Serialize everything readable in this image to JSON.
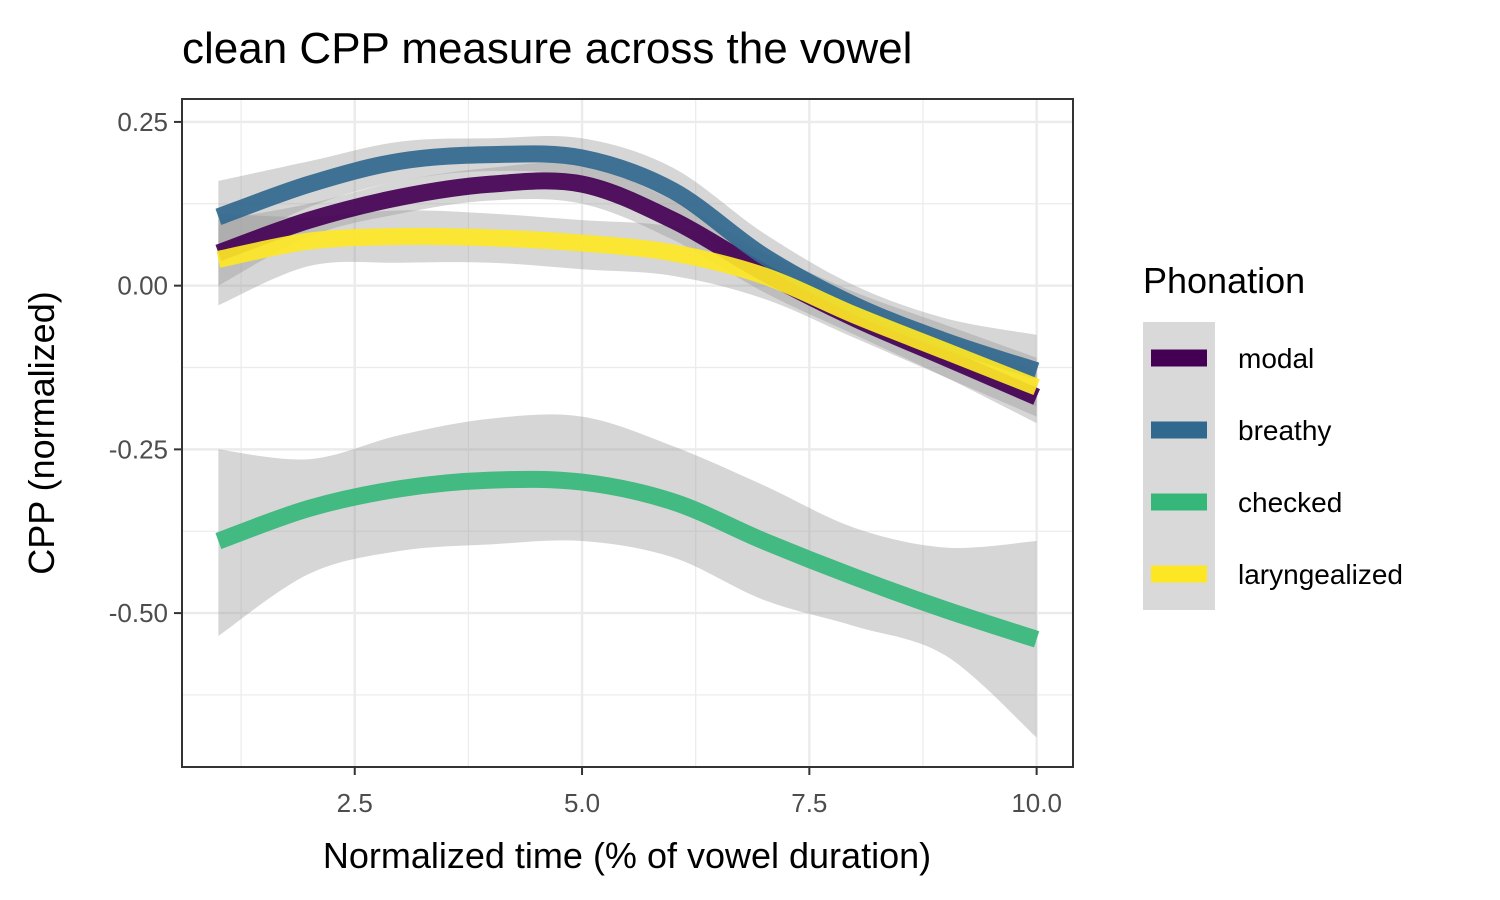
{
  "chart_data": {
    "type": "line",
    "title": "clean CPP measure across the vowel",
    "xlabel": "Normalized time (% of vowel duration)",
    "ylabel": "CPP (normalized)",
    "xlim": [
      0.6,
      10.4
    ],
    "ylim": [
      -0.735,
      0.285
    ],
    "x_ticks": [
      2.5,
      5.0,
      7.5,
      10.0
    ],
    "x_tick_labels": [
      "2.5",
      "5.0",
      "7.5",
      "10.0"
    ],
    "y_ticks": [
      0.25,
      0.0,
      -0.25,
      -0.5
    ],
    "y_tick_labels": [
      "0.25",
      "0.00",
      "-0.25",
      "-0.50"
    ],
    "grid": true,
    "legend": {
      "title": "Phonation",
      "position": "right"
    },
    "x": [
      1,
      2,
      3,
      4,
      5,
      6,
      7,
      8,
      9,
      10
    ],
    "series": [
      {
        "name": "modal",
        "color": "#440154",
        "values": [
          0.05,
          0.1,
          0.135,
          0.155,
          0.155,
          0.1,
          0.02,
          -0.05,
          -0.11,
          -0.17
        ],
        "ci_low": [
          0.0,
          0.075,
          0.11,
          0.13,
          0.125,
          0.07,
          -0.01,
          -0.075,
          -0.14,
          -0.21
        ],
        "ci_high": [
          0.1,
          0.125,
          0.16,
          0.18,
          0.185,
          0.13,
          0.05,
          -0.025,
          -0.08,
          -0.13
        ]
      },
      {
        "name": "breathy",
        "color": "#31688E",
        "values": [
          0.105,
          0.155,
          0.19,
          0.2,
          0.195,
          0.145,
          0.045,
          -0.03,
          -0.085,
          -0.13
        ],
        "ci_low": [
          0.05,
          0.12,
          0.16,
          0.175,
          0.165,
          0.11,
          0.01,
          -0.06,
          -0.12,
          -0.185
        ],
        "ci_high": [
          0.16,
          0.19,
          0.22,
          0.225,
          0.225,
          0.18,
          0.08,
          0.0,
          -0.05,
          -0.075
        ]
      },
      {
        "name": "checked",
        "color": "#35B779",
        "values": [
          -0.39,
          -0.34,
          -0.31,
          -0.297,
          -0.3,
          -0.33,
          -0.39,
          -0.445,
          -0.495,
          -0.54
        ],
        "ci_low": [
          -0.535,
          -0.44,
          -0.405,
          -0.395,
          -0.39,
          -0.415,
          -0.48,
          -0.52,
          -0.565,
          -0.69
        ],
        "ci_high": [
          -0.25,
          -0.265,
          -0.228,
          -0.203,
          -0.2,
          -0.245,
          -0.305,
          -0.37,
          -0.4,
          -0.39
        ]
      },
      {
        "name": "laryngealized",
        "color": "#FDE725",
        "values": [
          0.04,
          0.068,
          0.075,
          0.073,
          0.065,
          0.05,
          0.015,
          -0.045,
          -0.1,
          -0.155
        ],
        "ci_low": [
          -0.03,
          0.03,
          0.035,
          0.035,
          0.025,
          0.015,
          -0.02,
          -0.08,
          -0.14,
          -0.2
        ],
        "ci_high": [
          0.11,
          0.105,
          0.115,
          0.11,
          0.1,
          0.09,
          0.05,
          -0.01,
          -0.06,
          -0.11
        ]
      }
    ]
  }
}
